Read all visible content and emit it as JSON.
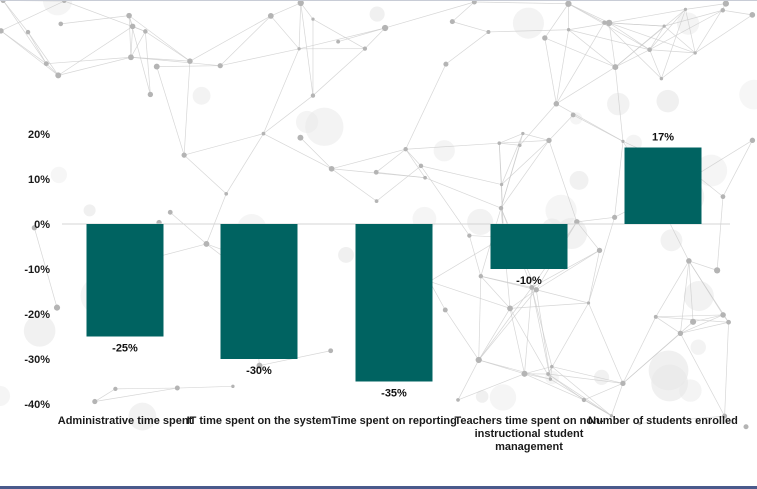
{
  "chart_data": {
    "type": "bar",
    "categories": [
      "Administrative time spent",
      "IT time spent on the system",
      "Time spent on reporting",
      "Teachers time spent on non-instructional student management",
      "Number of students enrolled"
    ],
    "category_lines": [
      [
        "Administrative time spent"
      ],
      [
        "IT time spent on the system"
      ],
      [
        "Time spent on reporting"
      ],
      [
        "Teachers time spent on non-",
        "instructional student",
        "management"
      ],
      [
        "Number of students enrolled"
      ]
    ],
    "values": [
      -25,
      -30,
      -35,
      -10,
      17
    ],
    "data_labels": [
      "-25%",
      "-30%",
      "-35%",
      "-10%",
      "17%"
    ],
    "yticks": [
      20,
      10,
      0,
      -10,
      -20,
      -30,
      -40
    ],
    "ytick_labels": [
      "20%",
      "10%",
      "0%",
      "-10%",
      "-20%",
      "-30%",
      "-40%"
    ],
    "ylim": [
      -40,
      20
    ],
    "title": "",
    "xlabel": "",
    "ylabel": "",
    "grid": false,
    "bar_color": "#006361",
    "baseline_color": "#d4d4d4"
  }
}
